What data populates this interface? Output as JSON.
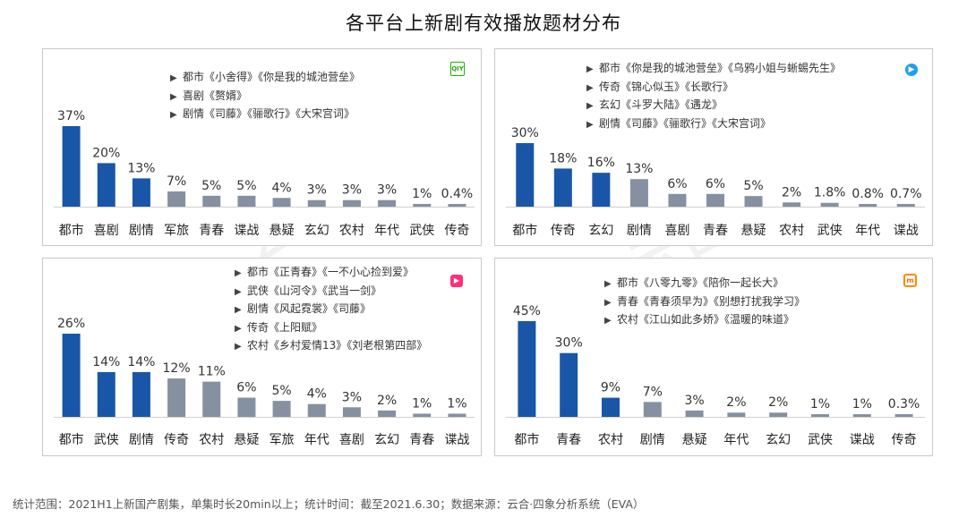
{
  "title": "各平台上新剧有效播放题材分布",
  "footer": "统计范围：2021H1上新国产剧集，单集时长20min以上；统计时间：截至2021.6.30；数据来源：云合·四象分析系统（EVA）",
  "colors": {
    "highlight": "#1a56a7",
    "other": "#8591a1"
  },
  "panels": [
    {
      "logo": "iqiyi-logo",
      "logo_text": "QIY",
      "notes": [
        "都市《小舍得》《你是我的城池营垒》",
        "喜剧《赘婿》",
        "剧情《司藤》《骊歌行》《大宋宫词》"
      ]
    },
    {
      "logo": "tencent-video-logo",
      "logo_text": "▶",
      "notes": [
        "都市《你是我的城池营垒》《乌鸦小姐与蜥蜴先生》",
        "传奇《锦心似玉》《长歌行》",
        "玄幻《斗罗大陆》《遇龙》",
        "剧情《司藤》《骊歌行》《大宋宫词》"
      ]
    },
    {
      "logo": "youku-logo",
      "logo_text": "▶",
      "notes": [
        "都市《正青春》《一不小心捡到爱》",
        "武侠《山河令》《武当一剑》",
        "剧情《风起霓裳》《司藤》",
        "传奇《上阳赋》",
        "农村《乡村爱情13》《刘老根第四部》"
      ]
    },
    {
      "logo": "mango-tv-logo",
      "logo_text": "m",
      "notes": [
        "都市《八零九零》《陪你一起长大》",
        "青春《青春须早为》《别想打扰我学习》",
        "农村《江山如此多娇》《温暖的味道》"
      ]
    }
  ],
  "chart_data": [
    {
      "type": "bar",
      "categories": [
        "都市",
        "喜剧",
        "剧情",
        "军旅",
        "青春",
        "谍战",
        "悬疑",
        "玄幻",
        "农村",
        "年代",
        "武侠",
        "传奇"
      ],
      "values": [
        37,
        20,
        13,
        7,
        5,
        5,
        4,
        3,
        3,
        3,
        1,
        0.4
      ],
      "labels": [
        "37%",
        "20%",
        "13%",
        "7%",
        "5%",
        "5%",
        "4%",
        "3%",
        "3%",
        "3%",
        "1%",
        "0.4%"
      ],
      "highlight_count": 3
    },
    {
      "type": "bar",
      "categories": [
        "都市",
        "传奇",
        "玄幻",
        "剧情",
        "喜剧",
        "青春",
        "悬疑",
        "农村",
        "武侠",
        "年代",
        "谍战"
      ],
      "values": [
        30,
        18,
        16,
        13,
        6,
        6,
        5,
        2,
        1.8,
        0.8,
        0.7
      ],
      "labels": [
        "30%",
        "18%",
        "16%",
        "13%",
        "6%",
        "6%",
        "5%",
        "2%",
        "1.8%",
        "0.8%",
        "0.7%"
      ],
      "highlight_count": 3
    },
    {
      "type": "bar",
      "categories": [
        "都市",
        "武侠",
        "剧情",
        "传奇",
        "农村",
        "悬疑",
        "军旅",
        "年代",
        "喜剧",
        "玄幻",
        "青春",
        "谍战"
      ],
      "values": [
        26,
        14,
        14,
        12,
        11,
        6,
        5,
        4,
        3,
        2,
        1,
        1
      ],
      "labels": [
        "26%",
        "14%",
        "14%",
        "12%",
        "11%",
        "6%",
        "5%",
        "4%",
        "3%",
        "2%",
        "1%",
        "1%"
      ],
      "highlight_count": 3
    },
    {
      "type": "bar",
      "categories": [
        "都市",
        "青春",
        "农村",
        "剧情",
        "悬疑",
        "年代",
        "玄幻",
        "武侠",
        "谍战",
        "传奇"
      ],
      "values": [
        45,
        30,
        9,
        7,
        3,
        2,
        2,
        1,
        1,
        0.3
      ],
      "labels": [
        "45%",
        "30%",
        "9%",
        "7%",
        "3%",
        "2%",
        "2%",
        "1%",
        "1%",
        "0.3%"
      ],
      "highlight_count": 3
    }
  ]
}
